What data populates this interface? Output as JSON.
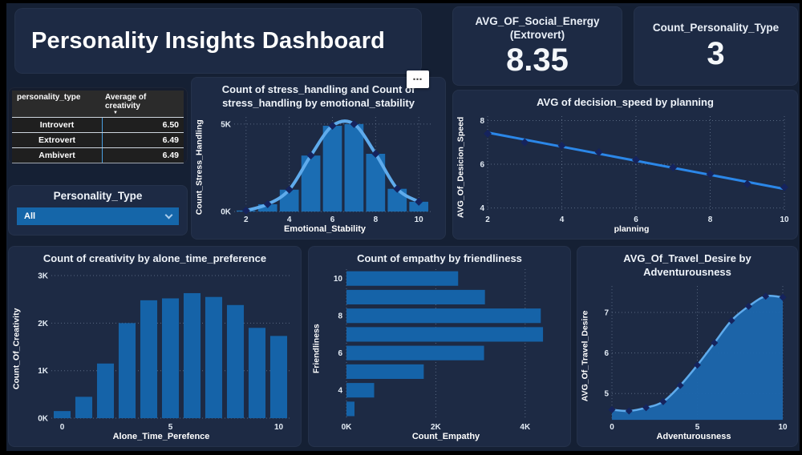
{
  "header": {
    "title": "Personality Insights Dashboard"
  },
  "kpis": [
    {
      "label_line1": "AVG_OF_Social_Energy",
      "label_line2": "(Extrovert)",
      "value": "8.35"
    },
    {
      "label_line1": "Count_Personality_Type",
      "value": "3"
    }
  ],
  "table": {
    "columns": [
      "personality_type",
      "Average of creativity"
    ],
    "sorted_by": "Average of creativity",
    "rows": [
      {
        "type": "Introvert",
        "avg": "6.50"
      },
      {
        "type": "Extrovert",
        "avg": "6.49"
      },
      {
        "type": "Ambivert",
        "avg": "6.49"
      }
    ]
  },
  "slicer": {
    "title": "Personality_Type",
    "selected": "All"
  },
  "icons": {
    "more_options": "⋯",
    "sort_desc": "▼",
    "chevron_down": "chevron-down"
  },
  "colors": {
    "page_bg": "#152034",
    "card_bg": "#1d2a44",
    "bar_blue": "#1563a8",
    "bar_blue_light": "#1b6db3",
    "area_blue": "#1c67ae",
    "line_light_blue": "#5fabec",
    "trend_blue": "#2b87e8",
    "marker_navy": "#15235d",
    "slicer_blue": "#1566a9",
    "grid_gray": "#9db1c9",
    "tick_text": "#e3ebf4"
  },
  "chart_data": [
    {
      "id": "stress_combo",
      "type": "line-column-combo",
      "title": "Count of stress_handling and Count of stress_handling by emotional_stability",
      "xlabel": "Emotional_Stability",
      "ylabel": "Count_Stress_Handling",
      "x": [
        2,
        3,
        4,
        5,
        6,
        7,
        8,
        9,
        10
      ],
      "series": [
        {
          "name": "Count of stress_handling (columns)",
          "values": [
            60,
            420,
            1250,
            3200,
            4900,
            5000,
            3300,
            1300,
            560
          ]
        },
        {
          "name": "Count of stress_handling (line)",
          "values": [
            60,
            420,
            1250,
            3200,
            4900,
            5000,
            3300,
            1300,
            560
          ]
        }
      ],
      "xlim": [
        1.45,
        10.55
      ],
      "ylim": [
        0,
        5400
      ],
      "y_ticks": [
        {
          "v": 0,
          "label": "0K"
        },
        {
          "v": 5000,
          "label": "5K"
        }
      ],
      "x_ticks": [
        2,
        4,
        6,
        8,
        10
      ],
      "grid": "dotted"
    },
    {
      "id": "decision_line",
      "type": "line",
      "title": "AVG of decision_speed by planning",
      "xlabel": "planning",
      "ylabel": "AVG_Of_Desicion_Speed",
      "x": [
        2,
        3,
        4,
        5,
        6,
        7,
        8,
        9,
        10
      ],
      "values": [
        7.4,
        7.0,
        6.85,
        6.55,
        6.2,
        5.85,
        5.55,
        5.1,
        4.95
      ],
      "trend_line": {
        "x1": 2,
        "y1": 7.45,
        "x2": 10,
        "y2": 4.87
      },
      "xlim": [
        2,
        10
      ],
      "ylim": [
        3.8,
        8.2
      ],
      "y_ticks": [
        {
          "v": 4,
          "label": "4"
        },
        {
          "v": 6,
          "label": "6"
        },
        {
          "v": 8,
          "label": "8"
        }
      ],
      "x_ticks": [
        2,
        4,
        6,
        8,
        10
      ],
      "grid": "dotted"
    },
    {
      "id": "creativity_bar",
      "type": "bar",
      "title": "Count of creativity by alone_time_preference",
      "xlabel": "Alone_Time_Perefence",
      "ylabel": "Count_Of_Creativity",
      "categories": [
        0,
        1,
        2,
        3,
        4,
        5,
        6,
        7,
        8,
        9,
        10
      ],
      "values": [
        150,
        450,
        1150,
        2000,
        2480,
        2520,
        2630,
        2550,
        2380,
        1900,
        1730
      ],
      "ylim": [
        0,
        3100
      ],
      "y_ticks": [
        {
          "v": 0,
          "label": "0K"
        },
        {
          "v": 1000,
          "label": "1K"
        },
        {
          "v": 2000,
          "label": "2K"
        },
        {
          "v": 3000,
          "label": "3K"
        }
      ],
      "x_ticks": [
        0,
        5,
        10
      ],
      "grid": "dotted"
    },
    {
      "id": "empathy_hbar",
      "type": "horizontal-bar",
      "title": "Count of empathy by friendliness",
      "xlabel": "Count_Empathy",
      "ylabel": "Friendliness",
      "categories": [
        10,
        9,
        8,
        7,
        6,
        5,
        4,
        3
      ],
      "values": [
        2500,
        3100,
        4350,
        4400,
        3080,
        1730,
        620,
        180
      ],
      "xlim": [
        0,
        4650
      ],
      "x_ticks": [
        {
          "v": 0,
          "label": "0K"
        },
        {
          "v": 2000,
          "label": "2K"
        },
        {
          "v": 4000,
          "label": "4K"
        }
      ],
      "y_ticks": [
        10,
        8,
        6,
        4
      ],
      "grid": "dotted"
    },
    {
      "id": "travel_area",
      "type": "area-line",
      "title": "AVG_Of_Travel_Desire by Adventurousness",
      "xlabel": "Adventurousness",
      "ylabel": "AVG_Of_Travel_Desire",
      "x": [
        0,
        1,
        2,
        3,
        4,
        5,
        6,
        7,
        8,
        9,
        10
      ],
      "values": [
        4.6,
        4.57,
        4.65,
        4.8,
        5.2,
        5.7,
        6.25,
        6.8,
        7.15,
        7.4,
        7.37
      ],
      "xlim": [
        0,
        10
      ],
      "ylim": [
        4.35,
        7.65
      ],
      "y_ticks": [
        {
          "v": 5,
          "label": "5"
        },
        {
          "v": 6,
          "label": "6"
        },
        {
          "v": 7,
          "label": "7"
        }
      ],
      "x_ticks": [
        0,
        5,
        10
      ],
      "grid": "dotted"
    }
  ]
}
